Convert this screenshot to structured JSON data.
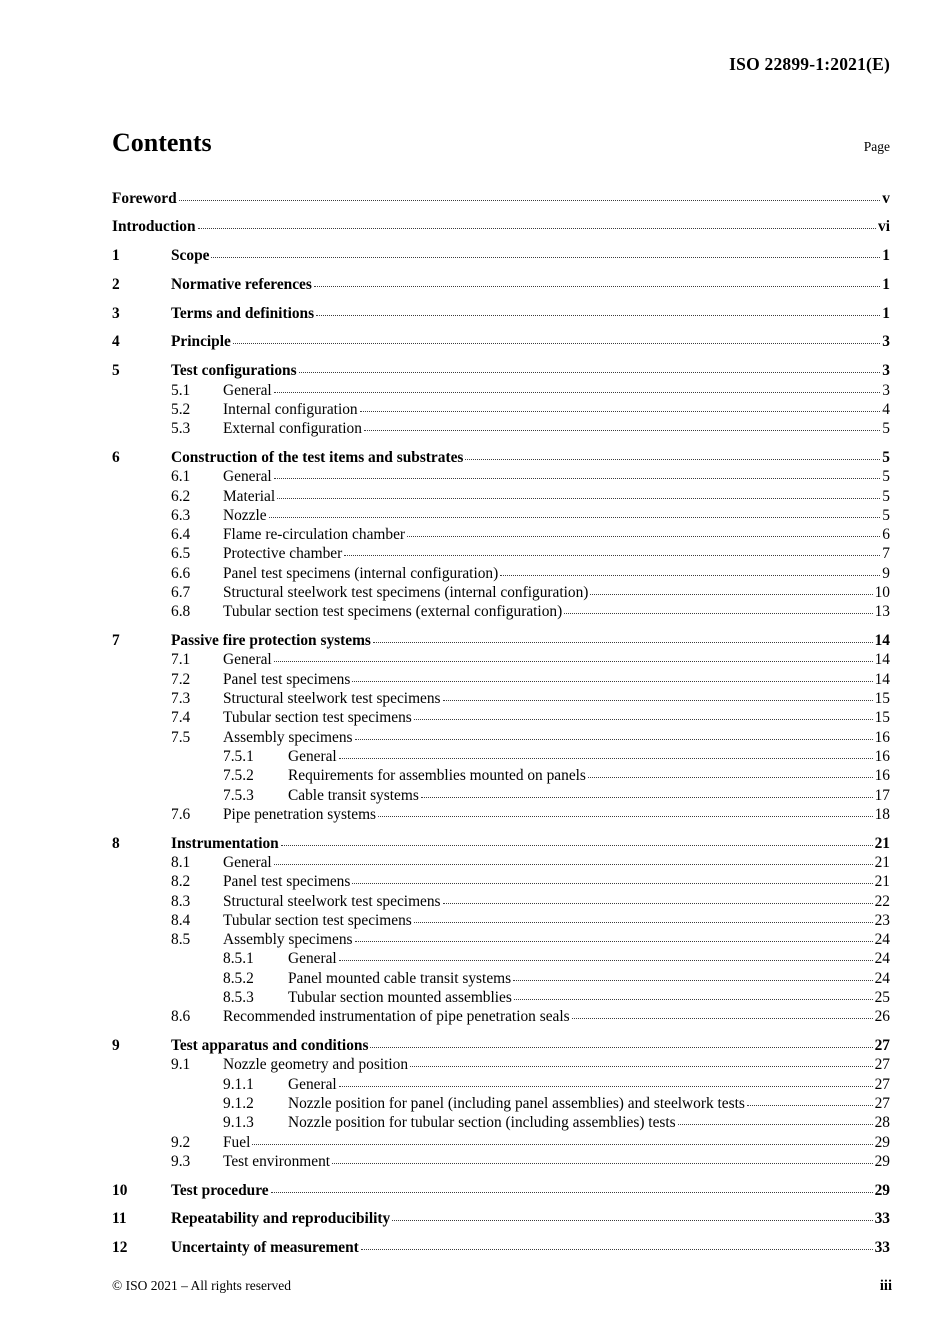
{
  "header": {
    "doc_id": "ISO 22899-1:2021(E)"
  },
  "contents": {
    "title": "Contents",
    "page_label": "Page"
  },
  "toc": [
    {
      "num": "",
      "title": "Foreword",
      "page": "v",
      "level": 0,
      "bold": true
    },
    {
      "num": "",
      "title": "Introduction",
      "page": "vi",
      "level": 0,
      "bold": true
    },
    {
      "num": "1",
      "title": "Scope",
      "page": "1",
      "level": 1,
      "bold": true
    },
    {
      "num": "2",
      "title": "Normative references",
      "page": "1",
      "level": 1,
      "bold": true
    },
    {
      "num": "3",
      "title": "Terms and definitions",
      "page": "1",
      "level": 1,
      "bold": true
    },
    {
      "num": "4",
      "title": "Principle",
      "page": "3",
      "level": 1,
      "bold": true
    },
    {
      "num": "5",
      "title": "Test configurations",
      "page": "3",
      "level": 1,
      "bold": true
    },
    {
      "num": "5.1",
      "title": "General",
      "page": "3",
      "level": 2,
      "bold": false
    },
    {
      "num": "5.2",
      "title": "Internal configuration",
      "page": "4",
      "level": 2,
      "bold": false
    },
    {
      "num": "5.3",
      "title": "External configuration",
      "page": "5",
      "level": 2,
      "bold": false
    },
    {
      "num": "6",
      "title": "Construction of the test items and substrates",
      "page": "5",
      "level": 1,
      "bold": true
    },
    {
      "num": "6.1",
      "title": "General",
      "page": "5",
      "level": 2,
      "bold": false
    },
    {
      "num": "6.2",
      "title": "Material",
      "page": "5",
      "level": 2,
      "bold": false
    },
    {
      "num": "6.3",
      "title": "Nozzle",
      "page": "5",
      "level": 2,
      "bold": false
    },
    {
      "num": "6.4",
      "title": "Flame re-circulation chamber",
      "page": "6",
      "level": 2,
      "bold": false
    },
    {
      "num": "6.5",
      "title": "Protective chamber",
      "page": "7",
      "level": 2,
      "bold": false
    },
    {
      "num": "6.6",
      "title": "Panel test specimens (internal configuration)",
      "page": "9",
      "level": 2,
      "bold": false
    },
    {
      "num": "6.7",
      "title": "Structural steelwork test specimens (internal configuration)",
      "page": "10",
      "level": 2,
      "bold": false
    },
    {
      "num": "6.8",
      "title": "Tubular section test specimens (external configuration)",
      "page": "13",
      "level": 2,
      "bold": false
    },
    {
      "num": "7",
      "title": "Passive fire protection systems",
      "page": "14",
      "level": 1,
      "bold": true
    },
    {
      "num": "7.1",
      "title": "General",
      "page": "14",
      "level": 2,
      "bold": false
    },
    {
      "num": "7.2",
      "title": "Panel test specimens",
      "page": "14",
      "level": 2,
      "bold": false
    },
    {
      "num": "7.3",
      "title": "Structural steelwork test specimens",
      "page": "15",
      "level": 2,
      "bold": false
    },
    {
      "num": "7.4",
      "title": "Tubular section test specimens",
      "page": "15",
      "level": 2,
      "bold": false
    },
    {
      "num": "7.5",
      "title": "Assembly specimens",
      "page": "16",
      "level": 2,
      "bold": false
    },
    {
      "num": "7.5.1",
      "title": "General",
      "page": "16",
      "level": 3,
      "bold": false
    },
    {
      "num": "7.5.2",
      "title": "Requirements for assemblies mounted on panels",
      "page": "16",
      "level": 3,
      "bold": false
    },
    {
      "num": "7.5.3",
      "title": "Cable transit systems",
      "page": "17",
      "level": 3,
      "bold": false
    },
    {
      "num": "7.6",
      "title": "Pipe penetration systems",
      "page": "18",
      "level": 2,
      "bold": false
    },
    {
      "num": "8",
      "title": "Instrumentation",
      "page": "21",
      "level": 1,
      "bold": true
    },
    {
      "num": "8.1",
      "title": "General",
      "page": "21",
      "level": 2,
      "bold": false
    },
    {
      "num": "8.2",
      "title": "Panel test specimens",
      "page": "21",
      "level": 2,
      "bold": false
    },
    {
      "num": "8.3",
      "title": "Structural steelwork test specimens",
      "page": "22",
      "level": 2,
      "bold": false
    },
    {
      "num": "8.4",
      "title": "Tubular section test specimens",
      "page": "23",
      "level": 2,
      "bold": false
    },
    {
      "num": "8.5",
      "title": "Assembly specimens",
      "page": "24",
      "level": 2,
      "bold": false
    },
    {
      "num": "8.5.1",
      "title": "General",
      "page": "24",
      "level": 3,
      "bold": false
    },
    {
      "num": "8.5.2",
      "title": "Panel mounted cable transit systems",
      "page": "24",
      "level": 3,
      "bold": false
    },
    {
      "num": "8.5.3",
      "title": "Tubular section mounted assemblies",
      "page": "25",
      "level": 3,
      "bold": false
    },
    {
      "num": "8.6",
      "title": "Recommended instrumentation of pipe penetration seals",
      "page": "26",
      "level": 2,
      "bold": false
    },
    {
      "num": "9",
      "title": "Test apparatus and conditions",
      "page": "27",
      "level": 1,
      "bold": true
    },
    {
      "num": "9.1",
      "title": "Nozzle geometry and position",
      "page": "27",
      "level": 2,
      "bold": false
    },
    {
      "num": "9.1.1",
      "title": "General",
      "page": "27",
      "level": 3,
      "bold": false
    },
    {
      "num": "9.1.2",
      "title": "Nozzle position for panel (including panel assemblies) and steelwork tests",
      "page": "27",
      "level": 3,
      "bold": false
    },
    {
      "num": "9.1.3",
      "title": "Nozzle position for tubular section (including assemblies) tests",
      "page": "28",
      "level": 3,
      "bold": false
    },
    {
      "num": "9.2",
      "title": "Fuel",
      "page": "29",
      "level": 2,
      "bold": false
    },
    {
      "num": "9.3",
      "title": "Test environment",
      "page": "29",
      "level": 2,
      "bold": false
    },
    {
      "num": "10",
      "title": "Test procedure",
      "page": "29",
      "level": 1,
      "bold": true
    },
    {
      "num": "11",
      "title": "Repeatability and reproducibility",
      "page": "33",
      "level": 1,
      "bold": true
    },
    {
      "num": "12",
      "title": "Uncertainty of measurement",
      "page": "33",
      "level": 1,
      "bold": true
    }
  ],
  "footer": {
    "copyright": "© ISO 2021 – All rights reserved",
    "page_number": "iii"
  }
}
